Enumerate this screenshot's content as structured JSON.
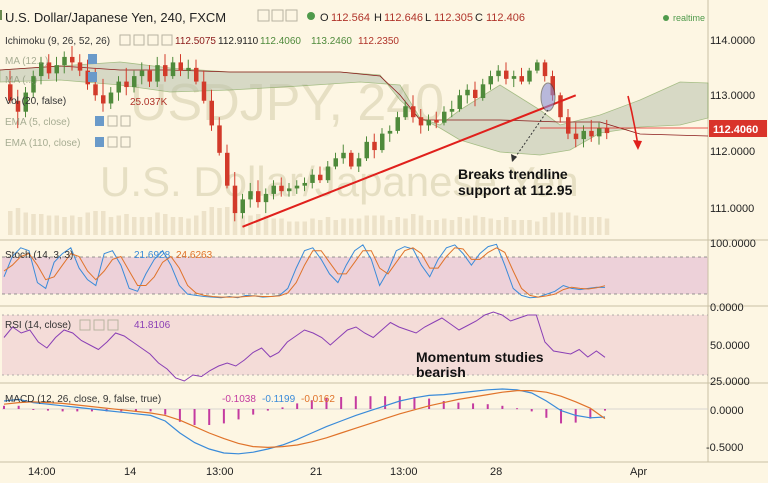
{
  "header": {
    "symbol": "U.S. Dollar/Japanese Yen, 240, FXCM",
    "o_label": "O",
    "o": "112.564",
    "h_label": "H",
    "h": "112.646",
    "l_label": "L",
    "l": "112.305",
    "c_label": "C",
    "c": "112.406",
    "realtime": "realtime"
  },
  "indicators": {
    "ichimoku": {
      "label": "Ichimoku (9, 26, 52, 26)",
      "values": [
        "112.5075",
        "112.9110",
        "112.4060",
        "113.2460",
        "112.2350"
      ]
    },
    "ma1": {
      "label": "MA (12...)"
    },
    "ma2": {
      "label": "MA (...)"
    },
    "vol": {
      "label": "Vol (20, false)",
      "value": "25.037K"
    },
    "ema1": {
      "label": "EMA (5, close)"
    },
    "ema2": {
      "label": "EMA (110, close)"
    }
  },
  "watermark": {
    "ticker": "USDJPY, 240",
    "name": "U.S. Dollar/Japanese Yen"
  },
  "annotations": {
    "breaks_line1": "Breaks trendline",
    "breaks_line2": "support at 112.95",
    "momentum_line1": "Momentum studies",
    "momentum_line2": "bearish"
  },
  "price_axis": {
    "ticks": [
      "114.0000",
      "113.0000",
      "112.0000",
      "111.0000"
    ],
    "current": "112.4060"
  },
  "stoch": {
    "label": "Stoch (14, 3, 3)",
    "k": "21.6928",
    "d": "24.6263",
    "axis": [
      "100.0000",
      "0.0000"
    ]
  },
  "rsi": {
    "label": "RSI (14, close)",
    "value": "41.8106",
    "axis": [
      "50.0000",
      "25.0000"
    ]
  },
  "macd": {
    "label": "MACD (12, 26, close, 9, false, true)",
    "v1": "-0.1038",
    "v2": "-0.1199",
    "v3": "-0.0162",
    "axis": [
      "0.0000",
      "-0.5000"
    ]
  },
  "time_axis": [
    "14:00",
    "14",
    "13:00",
    "21",
    "13:00",
    "28",
    "Apr"
  ],
  "colors": {
    "background": "#fdf6e3",
    "up_candle": "#4f8a3b",
    "down_candle": "#d23a2a",
    "trendline": "#e0201c",
    "cloud": "#b9c2ad",
    "price_tag": "#d9342b",
    "stoch_band": "#e9c8d6",
    "rsi_band": "#f1d6d4",
    "stoch_k": "#3a8bd9",
    "stoch_d": "#e0732a",
    "rsi_line": "#8a3fb5",
    "macd_line": "#3a8bd9",
    "signal_line": "#e0732a",
    "macd_hist": "#c43aa0"
  },
  "chart_data": {
    "type": "candlestick",
    "symbol": "USDJPY",
    "timeframe": "240",
    "ylim": [
      110.55,
      114.2
    ],
    "candles": [
      [
        113.3,
        113.55,
        112.95,
        113.0
      ],
      [
        113.0,
        113.2,
        112.5,
        112.8
      ],
      [
        112.8,
        113.25,
        112.7,
        113.15
      ],
      [
        113.15,
        113.55,
        113.05,
        113.45
      ],
      [
        113.45,
        113.8,
        113.3,
        113.7
      ],
      [
        113.7,
        113.85,
        113.4,
        113.5
      ],
      [
        113.5,
        113.8,
        113.35,
        113.65
      ],
      [
        113.65,
        113.9,
        113.5,
        113.8
      ],
      [
        113.8,
        114.0,
        113.55,
        113.7
      ],
      [
        113.7,
        113.85,
        113.45,
        113.55
      ],
      [
        113.55,
        113.75,
        113.2,
        113.3
      ],
      [
        113.3,
        113.6,
        113.0,
        113.1
      ],
      [
        113.1,
        113.4,
        112.8,
        112.95
      ],
      [
        112.95,
        113.25,
        112.85,
        113.15
      ],
      [
        113.15,
        113.45,
        113.0,
        113.35
      ],
      [
        113.35,
        113.6,
        113.1,
        113.25
      ],
      [
        113.25,
        113.55,
        113.15,
        113.45
      ],
      [
        113.45,
        113.7,
        113.3,
        113.55
      ],
      [
        113.55,
        113.65,
        113.25,
        113.35
      ],
      [
        113.35,
        113.8,
        113.25,
        113.65
      ],
      [
        113.65,
        113.85,
        113.35,
        113.45
      ],
      [
        113.45,
        113.8,
        113.4,
        113.7
      ],
      [
        113.7,
        113.85,
        113.45,
        113.55
      ],
      [
        113.55,
        113.75,
        113.4,
        113.6
      ],
      [
        113.6,
        113.75,
        113.3,
        113.35
      ],
      [
        113.35,
        113.55,
        112.95,
        113.0
      ],
      [
        113.0,
        113.2,
        112.45,
        112.55
      ],
      [
        112.55,
        112.7,
        112.0,
        112.05
      ],
      [
        112.05,
        112.2,
        111.4,
        111.45
      ],
      [
        111.45,
        111.7,
        110.8,
        110.95
      ],
      [
        110.95,
        111.3,
        110.85,
        111.2
      ],
      [
        111.2,
        111.5,
        111.05,
        111.35
      ],
      [
        111.35,
        111.55,
        111.05,
        111.15
      ],
      [
        111.15,
        111.4,
        110.95,
        111.3
      ],
      [
        111.3,
        111.55,
        111.2,
        111.45
      ],
      [
        111.45,
        111.6,
        111.25,
        111.35
      ],
      [
        111.35,
        111.5,
        111.25,
        111.4
      ],
      [
        111.4,
        111.55,
        111.3,
        111.45
      ],
      [
        111.45,
        111.6,
        111.35,
        111.5
      ],
      [
        111.5,
        111.75,
        111.4,
        111.65
      ],
      [
        111.65,
        111.8,
        111.5,
        111.55
      ],
      [
        111.55,
        111.9,
        111.5,
        111.8
      ],
      [
        111.8,
        112.05,
        111.75,
        111.95
      ],
      [
        111.95,
        112.2,
        111.85,
        112.05
      ],
      [
        112.05,
        112.1,
        111.75,
        111.8
      ],
      [
        111.8,
        112.05,
        111.7,
        111.95
      ],
      [
        111.95,
        112.35,
        111.9,
        112.25
      ],
      [
        112.25,
        112.4,
        111.95,
        112.1
      ],
      [
        112.1,
        112.5,
        112.05,
        112.4
      ],
      [
        112.4,
        112.55,
        112.25,
        112.45
      ],
      [
        112.45,
        112.8,
        112.4,
        112.7
      ],
      [
        112.7,
        113.0,
        112.65,
        112.9
      ],
      [
        112.9,
        113.1,
        112.6,
        112.7
      ],
      [
        112.7,
        112.85,
        112.4,
        112.55
      ],
      [
        112.55,
        112.75,
        112.45,
        112.65
      ],
      [
        112.65,
        112.8,
        112.5,
        112.6
      ],
      [
        112.6,
        112.9,
        112.55,
        112.8
      ],
      [
        112.8,
        113.0,
        112.7,
        112.85
      ],
      [
        112.85,
        113.2,
        112.8,
        113.1
      ],
      [
        113.1,
        113.3,
        112.95,
        113.2
      ],
      [
        113.2,
        113.35,
        112.9,
        113.05
      ],
      [
        113.05,
        113.4,
        113.0,
        113.3
      ],
      [
        113.3,
        113.55,
        113.2,
        113.45
      ],
      [
        113.45,
        113.65,
        113.35,
        113.55
      ],
      [
        113.55,
        113.7,
        113.3,
        113.4
      ],
      [
        113.4,
        113.55,
        113.25,
        113.45
      ],
      [
        113.45,
        113.6,
        113.3,
        113.35
      ],
      [
        113.35,
        113.6,
        113.3,
        113.55
      ],
      [
        113.55,
        113.75,
        113.5,
        113.7
      ],
      [
        113.7,
        113.75,
        113.35,
        113.45
      ],
      [
        113.45,
        113.55,
        113.0,
        113.1
      ],
      [
        113.1,
        113.15,
        112.6,
        112.7
      ],
      [
        112.7,
        112.85,
        112.3,
        112.4
      ],
      [
        112.4,
        112.6,
        112.15,
        112.3
      ],
      [
        112.3,
        112.55,
        112.15,
        112.45
      ],
      [
        112.45,
        112.65,
        112.25,
        112.35
      ],
      [
        112.35,
        112.6,
        112.2,
        112.5
      ],
      [
        112.5,
        112.65,
        112.3,
        112.41
      ]
    ],
    "trendline": {
      "from": {
        "candle": 30,
        "price": 110.7
      },
      "to": {
        "candle": 73,
        "price": 113.1
      }
    },
    "stoch": {
      "k": [
        40,
        75,
        90,
        85,
        30,
        20,
        65,
        80,
        90,
        55,
        35,
        25,
        80,
        85,
        60,
        20,
        15,
        45,
        70,
        85,
        60,
        25,
        10,
        8,
        6,
        5,
        4,
        6,
        4,
        8,
        7,
        5,
        6,
        8,
        20,
        55,
        85,
        90,
        70,
        45,
        30,
        60,
        85,
        95,
        70,
        25,
        50,
        85,
        92,
        88,
        60,
        40,
        70,
        90,
        95,
        80,
        60,
        80,
        92,
        96,
        60,
        20,
        8,
        4,
        5,
        10,
        15,
        25,
        20,
        18,
        20,
        22,
        21.7
      ],
      "d": [
        50,
        60,
        75,
        80,
        60,
        35,
        40,
        60,
        80,
        75,
        50,
        35,
        50,
        70,
        75,
        50,
        25,
        25,
        40,
        65,
        75,
        55,
        25,
        12,
        8,
        6,
        5,
        5,
        5,
        6,
        7,
        6,
        6,
        7,
        12,
        30,
        60,
        85,
        85,
        65,
        45,
        45,
        65,
        85,
        85,
        55,
        45,
        65,
        85,
        90,
        80,
        55,
        55,
        75,
        90,
        88,
        70,
        70,
        82,
        90,
        82,
        50,
        20,
        8,
        5,
        7,
        10,
        18,
        22,
        20,
        19,
        21,
        24.6
      ]
    },
    "rsi": [
      55,
      62,
      58,
      60,
      52,
      48,
      55,
      60,
      58,
      53,
      50,
      47,
      52,
      58,
      56,
      52,
      48,
      44,
      38,
      34,
      28,
      26,
      30,
      29,
      33,
      36,
      38,
      36,
      40,
      45,
      48,
      42,
      45,
      52,
      56,
      60,
      58,
      55,
      50,
      55,
      60,
      62,
      58,
      55,
      60,
      65,
      62,
      60,
      58,
      62,
      65,
      68,
      64,
      60,
      63,
      66,
      70,
      72,
      70,
      66,
      68,
      70,
      70,
      52,
      46,
      45,
      44,
      47,
      42,
      46,
      41.8
    ],
    "macd": {
      "macd": [
        0.1,
        0.12,
        0.08,
        0.06,
        0.04,
        0.02,
        0.0,
        -0.02,
        -0.04,
        -0.06,
        -0.08,
        -0.15,
        -0.3,
        -0.42,
        -0.5,
        -0.55,
        -0.56,
        -0.54,
        -0.5,
        -0.45,
        -0.38,
        -0.3,
        -0.22,
        -0.15,
        -0.08,
        -0.02,
        0.04,
        0.1,
        0.14,
        0.17,
        0.18,
        0.2,
        0.22,
        0.24,
        0.25,
        0.24,
        0.2,
        0.1,
        -0.02,
        -0.08,
        -0.11,
        -0.1
      ],
      "signal": [
        0.06,
        0.08,
        0.09,
        0.08,
        0.07,
        0.05,
        0.03,
        0.01,
        -0.01,
        -0.03,
        -0.05,
        -0.08,
        -0.14,
        -0.22,
        -0.3,
        -0.37,
        -0.43,
        -0.47,
        -0.48,
        -0.47,
        -0.45,
        -0.41,
        -0.36,
        -0.3,
        -0.24,
        -0.18,
        -0.12,
        -0.06,
        -0.01,
        0.04,
        0.08,
        0.12,
        0.15,
        0.18,
        0.21,
        0.23,
        0.23,
        0.21,
        0.16,
        0.09,
        0.01,
        -0.12
      ],
      "hist": [
        0.04,
        0.04,
        -0.01,
        -0.02,
        -0.03,
        -0.03,
        -0.03,
        -0.03,
        -0.03,
        -0.03,
        -0.03,
        -0.07,
        -0.16,
        -0.2,
        -0.2,
        -0.18,
        -0.13,
        -0.07,
        -0.02,
        0.02,
        0.07,
        0.11,
        0.14,
        0.15,
        0.16,
        0.16,
        0.16,
        0.16,
        0.15,
        0.13,
        0.1,
        0.08,
        0.07,
        0.06,
        0.04,
        0.01,
        -0.03,
        -0.11,
        -0.18,
        -0.17,
        -0.12,
        -0.02
      ]
    }
  }
}
